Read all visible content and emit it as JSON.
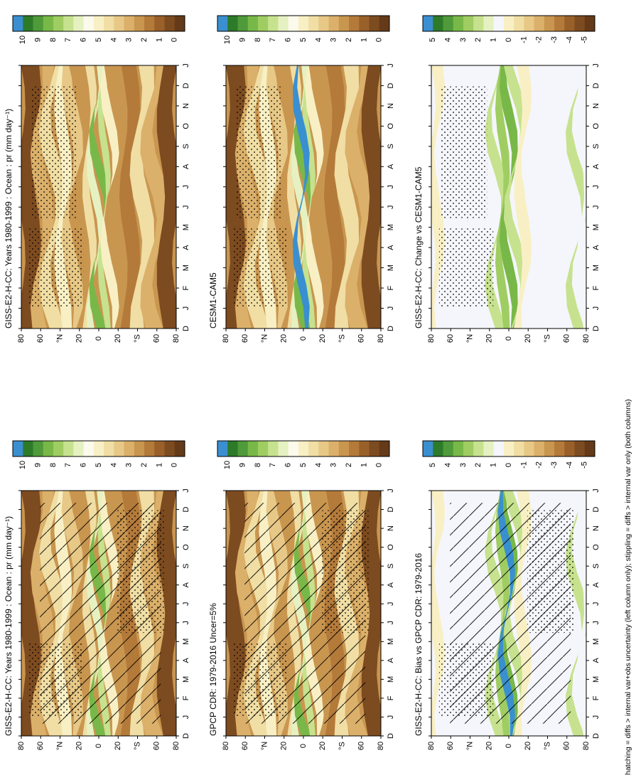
{
  "footnote": "hatching = diffs > internal var+obs uncertainty (left column only); stippling = diffs > internal var only (both columns)",
  "palettes": {
    "abs": [
      "#3a8fd0",
      "#2d7a29",
      "#4f9a3a",
      "#78b848",
      "#9fcd62",
      "#c6e28e",
      "#e6f1c2",
      "#fbfaed",
      "#f8f0c4",
      "#f0dea4",
      "#e7c886",
      "#dbb06a",
      "#c99650",
      "#b47a3a",
      "#99602a",
      "#7d4b20",
      "#643a19"
    ],
    "diff": [
      "#3a8fd0",
      "#2d7a29",
      "#4f9a3a",
      "#78b848",
      "#9fcd62",
      "#c6e28e",
      "#e6f1c2",
      "#f5f6fb",
      "#f8f0c4",
      "#f0dea4",
      "#e7c886",
      "#dbb06a",
      "#c99650",
      "#b47a3a",
      "#99602a",
      "#7d4b20",
      "#643a19"
    ]
  },
  "chart_data": [
    {
      "type": "heatmap",
      "title": "GISS-E2-H-CC: Years 1980-1999 : Ocean : pr (mm day⁻¹)",
      "x_ticks": [
        "D",
        "J",
        "F",
        "M",
        "A",
        "M",
        "J",
        "J",
        "A",
        "S",
        "O",
        "N",
        "D",
        "J"
      ],
      "y_ticks": [
        "80",
        "60",
        "°N",
        "20",
        "0",
        "20",
        "°S",
        "60",
        "80"
      ],
      "colorbar_ticks": [
        "10",
        "9",
        "8",
        "7",
        "6",
        "5",
        "4",
        "3",
        "2",
        "1",
        "0"
      ],
      "palette": "abs",
      "hatching": true,
      "stippling": true
    },
    {
      "type": "heatmap",
      "title": "GISS-E2-H-CC: Years 1980-1999 : Ocean : pr (mm day⁻¹)",
      "x_ticks": [
        "D",
        "J",
        "F",
        "M",
        "A",
        "M",
        "J",
        "J",
        "A",
        "S",
        "O",
        "N",
        "D",
        "J"
      ],
      "y_ticks": [
        "80",
        "60",
        "°N",
        "20",
        "0",
        "20",
        "°S",
        "60",
        "80"
      ],
      "colorbar_ticks": [
        "10",
        "9",
        "8",
        "7",
        "6",
        "5",
        "4",
        "3",
        "2",
        "1",
        "0"
      ],
      "palette": "abs",
      "hatching": false,
      "stippling": true
    },
    {
      "type": "heatmap",
      "title": "GPCP CDR: 1979-2016 Uncer=5%",
      "x_ticks": [
        "D",
        "J",
        "F",
        "M",
        "A",
        "M",
        "J",
        "J",
        "A",
        "S",
        "O",
        "N",
        "D",
        "J"
      ],
      "y_ticks": [
        "80",
        "60",
        "°N",
        "20",
        "0",
        "20",
        "°S",
        "60",
        "80"
      ],
      "colorbar_ticks": [
        "10",
        "9",
        "8",
        "7",
        "6",
        "5",
        "4",
        "3",
        "2",
        "1",
        "0"
      ],
      "palette": "abs",
      "hatching": true,
      "stippling": true
    },
    {
      "type": "heatmap",
      "title": "CESM1-CAM5",
      "x_ticks": [
        "D",
        "J",
        "F",
        "M",
        "A",
        "M",
        "J",
        "J",
        "A",
        "S",
        "O",
        "N",
        "D",
        "J"
      ],
      "y_ticks": [
        "80",
        "60",
        "°N",
        "20",
        "0",
        "20",
        "°S",
        "60",
        "80"
      ],
      "colorbar_ticks": [
        "10",
        "9",
        "8",
        "7",
        "6",
        "5",
        "4",
        "3",
        "2",
        "1",
        "0"
      ],
      "palette": "abs",
      "hatching": false,
      "stippling": true
    },
    {
      "type": "heatmap",
      "title": "GISS-E2-H-CC: Bias vs GPCP CDR: 1979-2016",
      "x_ticks": [
        "D",
        "J",
        "F",
        "M",
        "A",
        "M",
        "J",
        "J",
        "A",
        "S",
        "O",
        "N",
        "D",
        "J"
      ],
      "y_ticks": [
        "80",
        "60",
        "°N",
        "20",
        "0",
        "20",
        "°S",
        "60",
        "80"
      ],
      "colorbar_ticks": [
        "5",
        "4",
        "3",
        "2",
        "1",
        "0",
        "-1",
        "-2",
        "-3",
        "-4",
        "-5"
      ],
      "palette": "diff",
      "hatching": true,
      "stippling": true
    },
    {
      "type": "heatmap",
      "title": "GISS-E2-H-CC: Change vs CESM1-CAM5",
      "x_ticks": [
        "D",
        "J",
        "F",
        "M",
        "A",
        "M",
        "J",
        "J",
        "A",
        "S",
        "O",
        "N",
        "D",
        "J"
      ],
      "y_ticks": [
        "80",
        "60",
        "°N",
        "20",
        "0",
        "20",
        "°S",
        "60",
        "80"
      ],
      "colorbar_ticks": [
        "5",
        "4",
        "3",
        "2",
        "1",
        "0",
        "-1",
        "-2",
        "-3",
        "-4",
        "-5"
      ],
      "palette": "diff",
      "hatching": false,
      "stippling": true
    }
  ]
}
